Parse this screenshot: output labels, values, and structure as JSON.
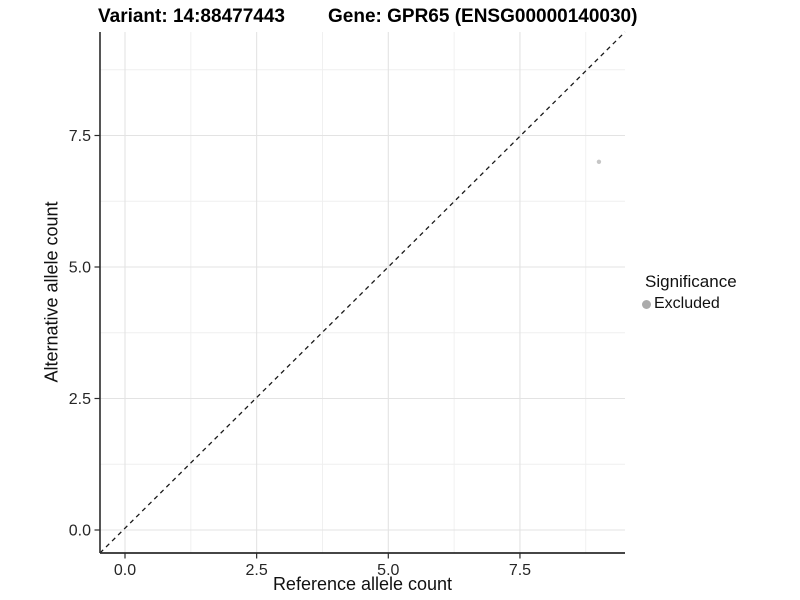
{
  "titles": {
    "variant": "Variant: 14:88477443",
    "gene": "Gene: GPR65 (ENSG00000140030)"
  },
  "chart_data": {
    "type": "scatter",
    "title": "Variant: 14:88477443",
    "title_right": "Gene: GPR65 (ENSG00000140030)",
    "xlabel": "Reference allele count",
    "ylabel": "Alternative allele count",
    "xlim": [
      -0.47,
      9.5
    ],
    "ylim": [
      -0.44,
      9.47
    ],
    "x_ticks": [
      0.0,
      2.5,
      5.0,
      7.5
    ],
    "y_ticks": [
      0.0,
      2.5,
      5.0,
      7.5
    ],
    "x_tick_labels": [
      "0.0",
      "2.5",
      "5.0",
      "7.5"
    ],
    "y_tick_labels": [
      "0.0",
      "2.5",
      "5.0",
      "7.5"
    ],
    "x_minor_ticks": [
      1.25,
      3.75,
      6.25,
      8.75
    ],
    "y_minor_ticks": [
      1.25,
      3.75,
      6.25,
      8.75
    ],
    "grid": true,
    "reference_line": {
      "type": "identity",
      "style": "dashed",
      "color": "#1a1a1a"
    },
    "series": [
      {
        "name": "Excluded",
        "marker": "circle",
        "color": "#c6c6c6",
        "points": [
          {
            "x": 9,
            "y": 7
          }
        ]
      }
    ],
    "legend": {
      "title": "Significance",
      "position": "right",
      "entries": [
        {
          "label": "Excluded",
          "marker": "circle",
          "color": "#ababab"
        }
      ]
    },
    "colors": {
      "background": "#ffffff",
      "grid_major": "#e3e3e3",
      "grid_minor": "#efefef",
      "axis_line": "#2b2b2b",
      "tick_label": "#262626",
      "point": "#c6c6c6",
      "legend_marker": "#ababab"
    }
  }
}
